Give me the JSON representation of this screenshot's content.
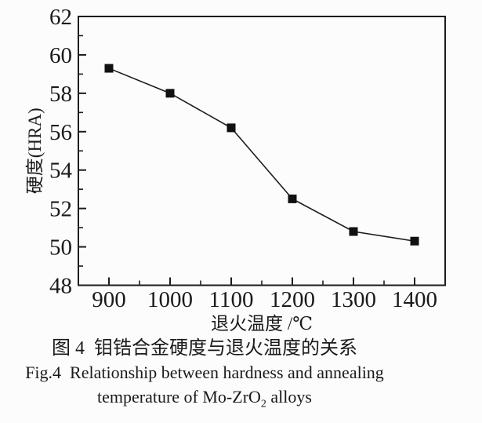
{
  "caption": {
    "chinese": "图 4  钼锆合金硬度与退火温度的关系",
    "english_line1": "Fig.4  Relationship between hardness and annealing",
    "english_line2_pre": "temperature of Mo-ZrO",
    "english_line2_sub": "2",
    "english_line2_post": " alloys"
  },
  "chart_data": {
    "type": "line",
    "title": "",
    "x": [
      900,
      1000,
      1100,
      1200,
      1300,
      1400
    ],
    "series": [
      {
        "name": "hardness",
        "values": [
          59.3,
          58.0,
          56.2,
          52.5,
          50.8,
          50.3
        ]
      }
    ],
    "xlabel": "退火温度 /℃",
    "ylabel": "硬度(HRA)",
    "xlim": [
      850,
      1450
    ],
    "ylim": [
      48,
      62
    ],
    "xticks": [
      900,
      1000,
      1100,
      1200,
      1300,
      1400
    ],
    "yticks": [
      48,
      50,
      52,
      54,
      56,
      58,
      60,
      62
    ],
    "x_minor_ticks": [
      950,
      1050,
      1150,
      1250,
      1350
    ],
    "y_minor_ticks": [
      49,
      51,
      53,
      55,
      57,
      59,
      61
    ],
    "marker": "filled-square",
    "grid": false,
    "legend": "none",
    "line_color": "#1c1c1c",
    "marker_color": "#111111",
    "axis_color": "#1c1c1c",
    "text_color": "#1a1a1a",
    "background": "#fcfcfc"
  }
}
